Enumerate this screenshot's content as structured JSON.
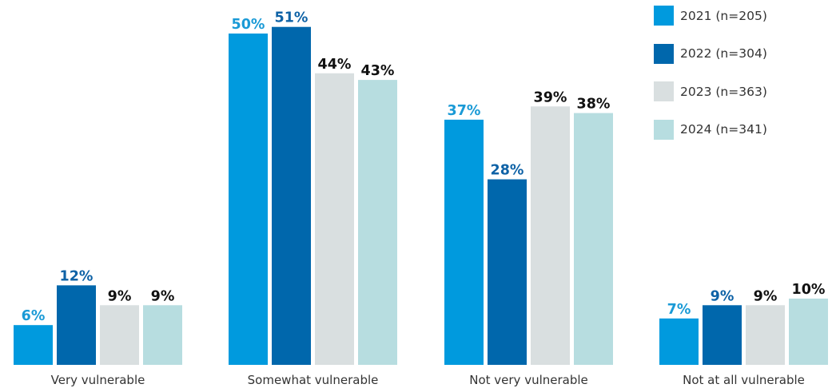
{
  "chart_data": {
    "type": "bar",
    "categories": [
      "Very vulnerable",
      "Somewhat vulnerable",
      "Not very vulnerable",
      "Not at all vulnerable"
    ],
    "series": [
      {
        "name": "2021 (n=205)",
        "color": "#009ADE",
        "label_color": "#1A9AD6",
        "values": [
          6,
          50,
          37,
          7
        ]
      },
      {
        "name": "2022 (n=304)",
        "color": "#0067AC",
        "label_color": "#0E62A6",
        "values": [
          12,
          51,
          28,
          9
        ]
      },
      {
        "name": "2023 (n=363)",
        "color": "#D9DFE0",
        "label_color": "#111111",
        "values": [
          9,
          44,
          39,
          9
        ]
      },
      {
        "name": "2024 (n=341)",
        "color": "#B7DDE0",
        "label_color": "#111111",
        "values": [
          9,
          43,
          38,
          10
        ]
      }
    ],
    "value_suffix": "%",
    "ylim": [
      0,
      51
    ],
    "grid": false,
    "legend_position": "top-right",
    "title": "",
    "xlabel": "",
    "ylabel": ""
  }
}
